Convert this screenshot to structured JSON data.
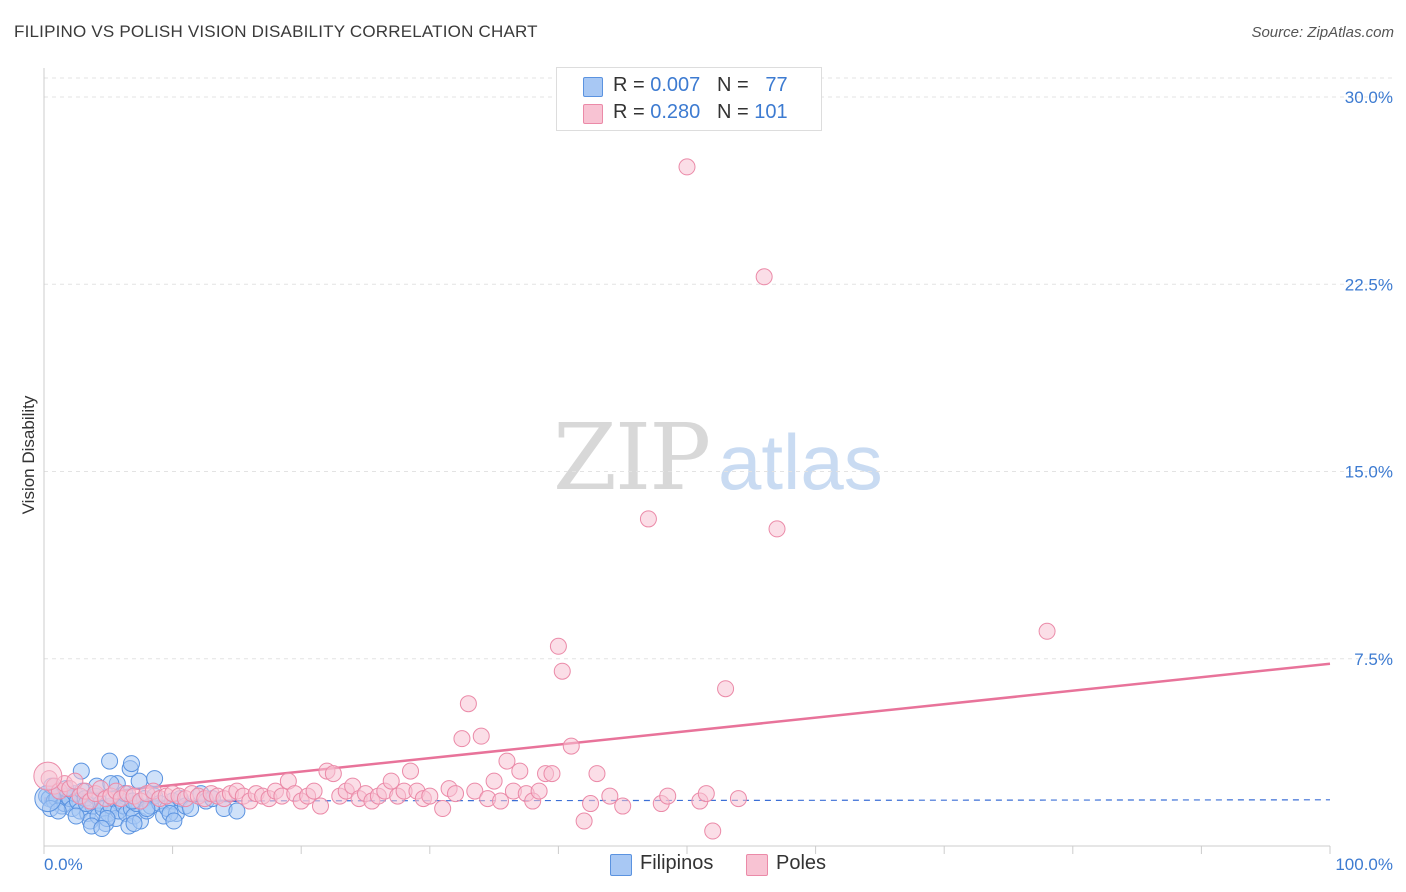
{
  "title": "FILIPINO VS POLISH VISION DISABILITY CORRELATION CHART",
  "source": "Source: ZipAtlas.com",
  "watermark": {
    "zip": "ZIP",
    "atlas": "atlas"
  },
  "legend": {
    "rows": [
      {
        "r_label": "R =",
        "r_value": "0.007",
        "n_label": "N =",
        "n_value": "77"
      },
      {
        "r_label": "R =",
        "r_value": "0.280",
        "n_label": "N =",
        "n_value": "101"
      }
    ]
  },
  "bottom_legend": {
    "filipinos": "Filipinos",
    "poles": "Poles"
  },
  "colors": {
    "filipinos_fill": "#a8c8f4",
    "filipinos_stroke": "#5b93e0",
    "filipinos_line": "#3b6fd6",
    "poles_fill": "#f8c3d3",
    "poles_stroke": "#eb8aa8",
    "poles_line": "#e8739a",
    "tick_text": "#3d7bd1",
    "grid": "#e3e3e3"
  },
  "chart_data": {
    "type": "scatter",
    "title": "FILIPINO VS POLISH VISION DISABILITY CORRELATION CHART",
    "xlabel": "",
    "ylabel": "Vision Disability",
    "xlim": [
      0,
      100
    ],
    "ylim": [
      0,
      30.5
    ],
    "x_tick_labels": [
      "0.0%",
      "100.0%"
    ],
    "y_ticks": [
      7.5,
      15.0,
      22.5,
      30.0
    ],
    "y_tick_labels": [
      "7.5%",
      "15.0%",
      "22.5%",
      "30.0%"
    ],
    "series": [
      {
        "name": "Filipinos",
        "R": 0.007,
        "N": 77,
        "trend": {
          "x0": 0,
          "y0": 1.8,
          "x1": 100,
          "y1": 1.85,
          "solid_to_x": 15
        },
        "points": [
          [
            0.2,
            2.0
          ],
          [
            0.4,
            1.9
          ],
          [
            0.6,
            2.4
          ],
          [
            0.8,
            1.8
          ],
          [
            1.0,
            1.9
          ],
          [
            1.2,
            2.2
          ],
          [
            1.4,
            1.6
          ],
          [
            1.6,
            1.7
          ],
          [
            1.8,
            2.0
          ],
          [
            2.0,
            1.9
          ],
          [
            2.2,
            1.5
          ],
          [
            2.4,
            2.1
          ],
          [
            2.6,
            1.8
          ],
          [
            2.8,
            1.4
          ],
          [
            3.0,
            2.2
          ],
          [
            3.2,
            1.9
          ],
          [
            3.4,
            1.3
          ],
          [
            3.6,
            1.0
          ],
          [
            3.8,
            1.6
          ],
          [
            4.0,
            2.0
          ],
          [
            4.2,
            1.2
          ],
          [
            4.4,
            1.7
          ],
          [
            4.6,
            1.5
          ],
          [
            4.8,
            0.9
          ],
          [
            5.0,
            1.3
          ],
          [
            5.2,
            1.6
          ],
          [
            5.4,
            1.9
          ],
          [
            5.6,
            1.1
          ],
          [
            5.8,
            1.4
          ],
          [
            6.0,
            1.8
          ],
          [
            6.2,
            1.6
          ],
          [
            6.4,
            1.3
          ],
          [
            6.6,
            0.8
          ],
          [
            6.8,
            1.5
          ],
          [
            7.0,
            1.2
          ],
          [
            7.2,
            1.7
          ],
          [
            7.5,
            1.0
          ],
          [
            7.8,
            1.9
          ],
          [
            8.0,
            1.4
          ],
          [
            8.3,
            1.6
          ],
          [
            8.6,
            2.0
          ],
          [
            9.0,
            1.7
          ],
          [
            9.3,
            1.2
          ],
          [
            9.6,
            1.5
          ],
          [
            10.0,
            1.8
          ],
          [
            10.3,
            1.3
          ],
          [
            10.6,
            1.9
          ],
          [
            11.0,
            1.6
          ],
          [
            0.5,
            1.5
          ],
          [
            1.1,
            1.4
          ],
          [
            1.7,
            2.3
          ],
          [
            2.5,
            1.2
          ],
          [
            3.3,
            1.7
          ],
          [
            4.1,
            2.4
          ],
          [
            4.9,
            1.1
          ],
          [
            5.7,
            2.5
          ],
          [
            6.3,
            2.1
          ],
          [
            6.9,
            1.8
          ],
          [
            7.4,
            2.6
          ],
          [
            3.7,
            0.8
          ],
          [
            2.9,
            3.0
          ],
          [
            5.1,
            3.4
          ],
          [
            6.7,
            3.1
          ],
          [
            6.8,
            3.3
          ],
          [
            5.2,
            2.5
          ],
          [
            4.5,
            0.7
          ],
          [
            7.0,
            0.9
          ],
          [
            8.0,
            1.5
          ],
          [
            9.8,
            1.3
          ],
          [
            10.1,
            1.0
          ],
          [
            11.4,
            1.5
          ],
          [
            12.2,
            2.1
          ],
          [
            12.6,
            1.8
          ],
          [
            13.1,
            1.9
          ],
          [
            14.0,
            1.5
          ],
          [
            15.0,
            1.4
          ],
          [
            8.6,
            2.7
          ]
        ]
      },
      {
        "name": "Poles",
        "R": 0.28,
        "N": 101,
        "trend": {
          "x0": 0,
          "y0": 1.9,
          "x1": 100,
          "y1": 7.3
        },
        "points": [
          [
            0.4,
            2.7
          ],
          [
            0.8,
            2.4
          ],
          [
            1.2,
            2.2
          ],
          [
            1.6,
            2.5
          ],
          [
            2.0,
            2.3
          ],
          [
            2.4,
            2.6
          ],
          [
            2.8,
            2.0
          ],
          [
            3.2,
            2.2
          ],
          [
            3.6,
            1.8
          ],
          [
            4.0,
            2.1
          ],
          [
            4.4,
            2.3
          ],
          [
            4.8,
            1.9
          ],
          [
            5.2,
            2.0
          ],
          [
            5.6,
            2.2
          ],
          [
            6.0,
            1.9
          ],
          [
            6.5,
            2.1
          ],
          [
            7.0,
            2.0
          ],
          [
            7.5,
            1.8
          ],
          [
            8.0,
            2.1
          ],
          [
            8.5,
            2.2
          ],
          [
            9.0,
            1.9
          ],
          [
            9.5,
            2.0
          ],
          [
            10.0,
            2.1
          ],
          [
            10.5,
            2.0
          ],
          [
            11.0,
            1.9
          ],
          [
            11.5,
            2.1
          ],
          [
            12.0,
            2.0
          ],
          [
            12.5,
            1.9
          ],
          [
            13.0,
            2.1
          ],
          [
            13.5,
            2.0
          ],
          [
            14.0,
            1.9
          ],
          [
            14.5,
            2.1
          ],
          [
            15.0,
            2.2
          ],
          [
            15.5,
            2.0
          ],
          [
            16.0,
            1.8
          ],
          [
            16.5,
            2.1
          ],
          [
            17.0,
            2.0
          ],
          [
            17.5,
            1.9
          ],
          [
            18.0,
            2.2
          ],
          [
            18.5,
            2.0
          ],
          [
            19.0,
            2.6
          ],
          [
            19.5,
            2.1
          ],
          [
            20.0,
            1.8
          ],
          [
            20.5,
            2.0
          ],
          [
            21.0,
            2.2
          ],
          [
            21.5,
            1.6
          ],
          [
            22.0,
            3.0
          ],
          [
            22.5,
            2.9
          ],
          [
            23.0,
            2.0
          ],
          [
            23.5,
            2.2
          ],
          [
            24.0,
            2.4
          ],
          [
            24.5,
            1.9
          ],
          [
            25.0,
            2.1
          ],
          [
            25.5,
            1.8
          ],
          [
            26.0,
            2.0
          ],
          [
            26.5,
            2.2
          ],
          [
            27.0,
            2.6
          ],
          [
            27.5,
            2.0
          ],
          [
            28.0,
            2.2
          ],
          [
            28.5,
            3.0
          ],
          [
            29.0,
            2.2
          ],
          [
            29.5,
            1.9
          ],
          [
            30.0,
            2.0
          ],
          [
            31.0,
            1.5
          ],
          [
            31.5,
            2.3
          ],
          [
            32.0,
            2.1
          ],
          [
            32.5,
            4.3
          ],
          [
            33.0,
            5.7
          ],
          [
            33.5,
            2.2
          ],
          [
            34.0,
            4.4
          ],
          [
            34.5,
            1.9
          ],
          [
            35.0,
            2.6
          ],
          [
            35.5,
            1.8
          ],
          [
            36.0,
            3.4
          ],
          [
            36.5,
            2.2
          ],
          [
            37.0,
            3.0
          ],
          [
            37.5,
            2.1
          ],
          [
            38.0,
            1.8
          ],
          [
            38.5,
            2.2
          ],
          [
            39.0,
            2.9
          ],
          [
            39.5,
            2.9
          ],
          [
            40.0,
            8.0
          ],
          [
            40.3,
            7.0
          ],
          [
            41.0,
            4.0
          ],
          [
            42.0,
            1.0
          ],
          [
            42.5,
            1.7
          ],
          [
            43.0,
            2.9
          ],
          [
            44.0,
            2.0
          ],
          [
            45.0,
            1.6
          ],
          [
            47.0,
            13.1
          ],
          [
            48.0,
            1.7
          ],
          [
            48.5,
            2.0
          ],
          [
            50.0,
            27.2
          ],
          [
            51.0,
            1.8
          ],
          [
            51.5,
            2.1
          ],
          [
            52.0,
            0.6
          ],
          [
            53.0,
            6.3
          ],
          [
            54.0,
            1.9
          ],
          [
            56.0,
            22.8
          ],
          [
            57.0,
            12.7
          ],
          [
            78.0,
            8.6
          ]
        ]
      }
    ]
  }
}
